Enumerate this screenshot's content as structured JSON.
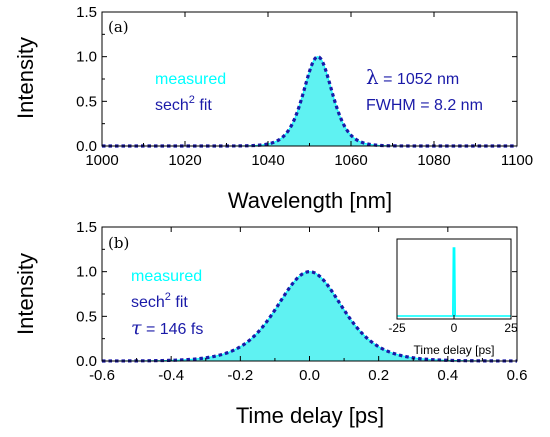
{
  "colors": {
    "measured": "#00ffff",
    "measured_fill": "#5ff2f2",
    "fit": "#1a1aa8"
  },
  "chart_data": [
    {
      "panel": "(a)",
      "type": "area",
      "ylabel": "Intensity",
      "xlabel": "Wavelength [nm]",
      "xlim": [
        1000,
        1100
      ],
      "ylim": [
        0,
        1.5
      ],
      "xticks": [
        "1000",
        "1020",
        "1040",
        "1060",
        "1080",
        "1100"
      ],
      "yticks": [
        "0.0",
        "0.5",
        "1.0",
        "1.5"
      ],
      "legend": {
        "measured": "measured",
        "fit_prefix": "sech",
        "fit_sup": "2",
        "fit_suffix": " fit"
      },
      "annotations": {
        "lambda_symbol": "λ",
        "lambda_text": " = 1052 nm",
        "fwhm_text": "FWHM = 8.2 nm"
      },
      "series": [
        {
          "name": "measured",
          "style": "filled",
          "center": 1052,
          "fwhm": 8.2,
          "peak": 1.0
        },
        {
          "name": "sech² fit",
          "style": "dotted",
          "center": 1052,
          "fwhm": 8.2,
          "peak": 1.0
        }
      ]
    },
    {
      "panel": "(b)",
      "type": "area",
      "ylabel": "Intensity",
      "xlabel": "Time delay [ps]",
      "xlim": [
        -0.6,
        0.6
      ],
      "ylim": [
        0,
        1.5
      ],
      "xticks": [
        "-0.6",
        "-0.4",
        "-0.2",
        "0.0",
        "0.2",
        "0.4",
        "0.6"
      ],
      "yticks": [
        "0.0",
        "0.5",
        "1.0",
        "1.5"
      ],
      "legend": {
        "measured": "measured",
        "fit_prefix": "sech",
        "fit_sup": "2",
        "fit_suffix": " fit"
      },
      "annotations": {
        "tau_symbol": "τ",
        "tau_text": " = 146 fs"
      },
      "series": [
        {
          "name": "measured",
          "style": "filled",
          "center": 0.0,
          "fwhm": 0.225,
          "peak": 1.0
        },
        {
          "name": "sech² fit",
          "style": "dotted",
          "center": 0.0,
          "fwhm": 0.225,
          "peak": 1.0
        }
      ],
      "inset": {
        "xlabel": "Time delay [ps]",
        "xlim": [
          -25,
          25
        ],
        "xticks": [
          "-25",
          "0",
          "25"
        ],
        "series": {
          "name": "measured",
          "spike_center": 0,
          "peak": 1.0
        }
      }
    }
  ]
}
